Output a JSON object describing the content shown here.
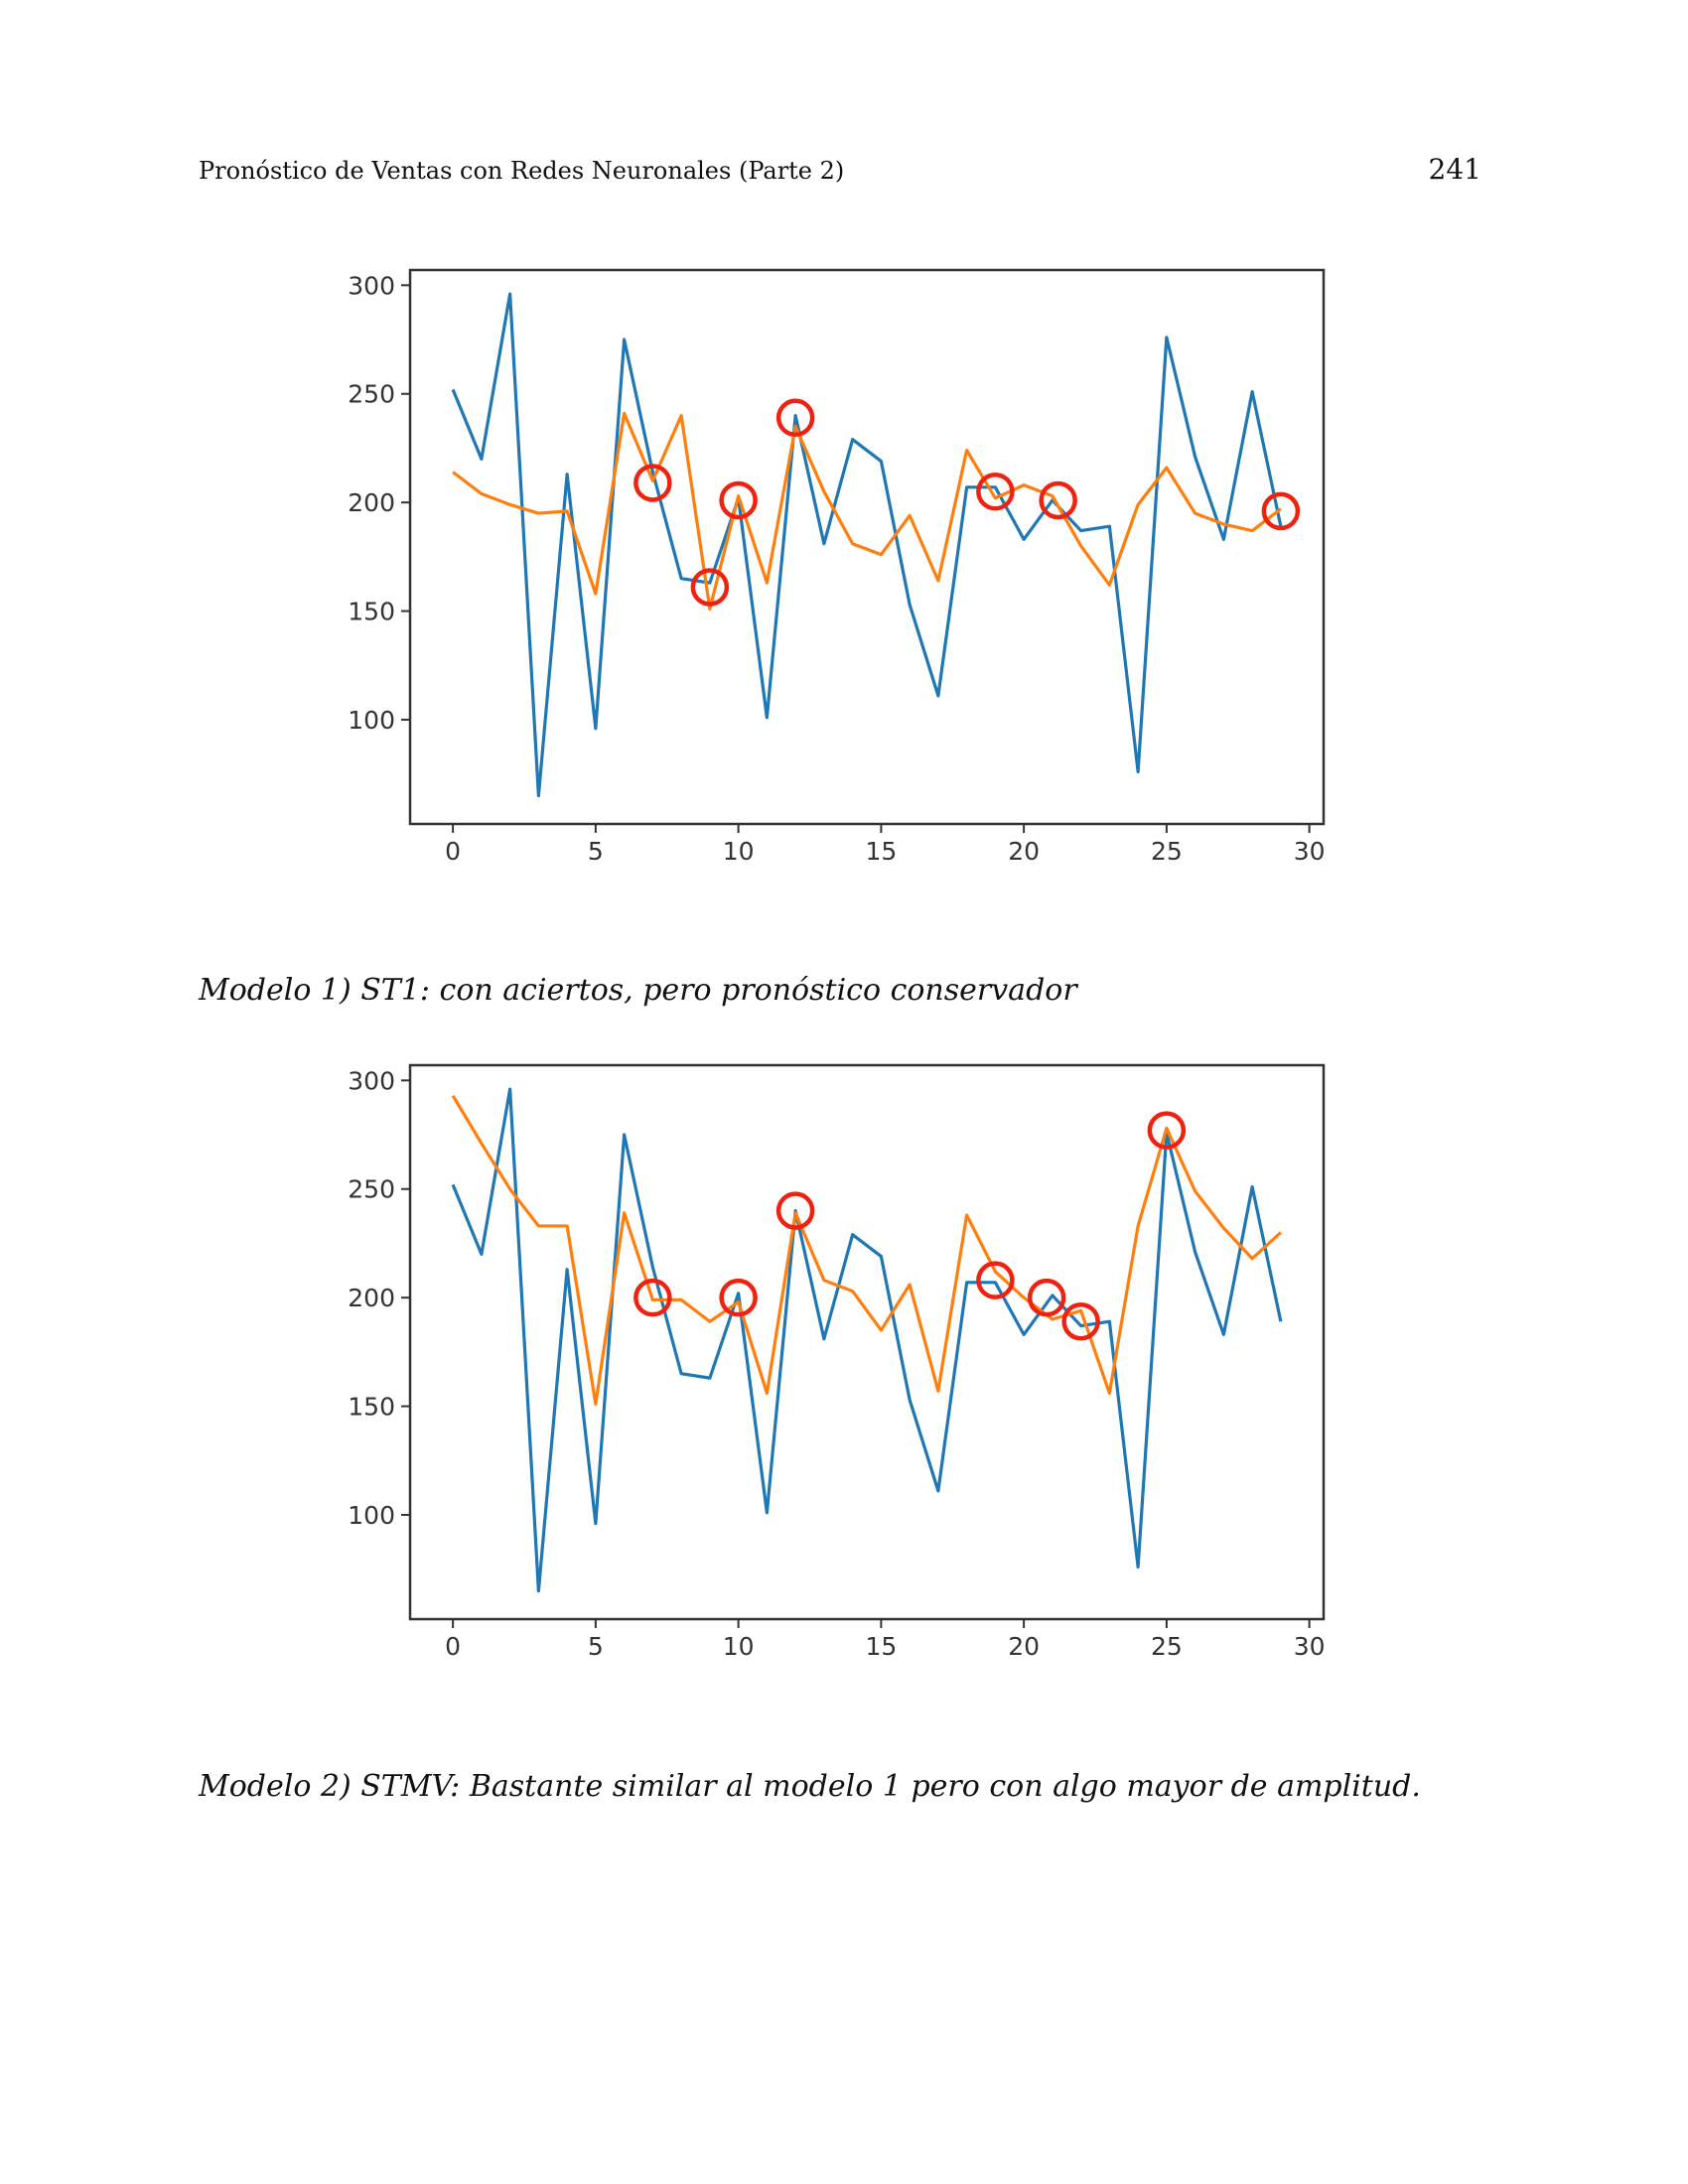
{
  "header": {
    "running_title": "Pronóstico de Ventas con Redes Neuronales (Parte 2)",
    "page_number": "241"
  },
  "colors": {
    "actual": "#1f77b4",
    "forecast": "#ff7f0e",
    "highlight": "#ee2211",
    "axis": "#333333"
  },
  "figures": [
    {
      "caption": "Modelo 1) ST1: con aciertos, pero pronóstico conservador"
    },
    {
      "caption": "Modelo 2) STMV: Bastante similar al modelo 1 pero con algo mayor de amplitud."
    }
  ],
  "chart_data": [
    {
      "type": "line",
      "title": "",
      "xlabel": "",
      "ylabel": "",
      "xlim": [
        -1.5,
        30.5
      ],
      "ylim": [
        52,
        307
      ],
      "xticks": [
        0,
        5,
        10,
        15,
        20,
        25,
        30
      ],
      "yticks": [
        100,
        150,
        200,
        250,
        300
      ],
      "series": [
        {
          "color": "#1f77b4",
          "x": [
            0,
            1,
            2,
            3,
            4,
            5,
            6,
            7,
            8,
            9,
            10,
            11,
            12,
            13,
            14,
            15,
            16,
            17,
            18,
            19,
            20,
            21,
            22,
            23,
            24,
            25,
            26,
            27,
            28,
            29
          ],
          "values": [
            252,
            220,
            296,
            65,
            213,
            96,
            275,
            214,
            165,
            163,
            202,
            101,
            240,
            181,
            229,
            219,
            153,
            111,
            207,
            207,
            183,
            201,
            187,
            189,
            76,
            276,
            221,
            183,
            251,
            189
          ]
        },
        {
          "color": "#ff7f0e",
          "x": [
            0,
            1,
            2,
            3,
            4,
            5,
            6,
            7,
            8,
            9,
            10,
            11,
            12,
            13,
            14,
            15,
            16,
            17,
            18,
            19,
            20,
            21,
            22,
            23,
            24,
            25,
            26,
            27,
            28,
            29
          ],
          "values": [
            214,
            204,
            199,
            195,
            196,
            158,
            241,
            210,
            240,
            151,
            203,
            163,
            235,
            205,
            181,
            176,
            194,
            164,
            224,
            202,
            208,
            203,
            180,
            162,
            199,
            216,
            195,
            190,
            187,
            197
          ]
        }
      ],
      "highlighted_points": [
        {
          "x": 7,
          "y": 209
        },
        {
          "x": 9,
          "y": 161
        },
        {
          "x": 10,
          "y": 201
        },
        {
          "x": 12,
          "y": 239
        },
        {
          "x": 19,
          "y": 205
        },
        {
          "x": 21.2,
          "y": 201
        },
        {
          "x": 29,
          "y": 196
        }
      ]
    },
    {
      "type": "line",
      "title": "",
      "xlabel": "",
      "ylabel": "",
      "xlim": [
        -1.5,
        30.5
      ],
      "ylim": [
        52,
        307
      ],
      "xticks": [
        0,
        5,
        10,
        15,
        20,
        25,
        30
      ],
      "yticks": [
        100,
        150,
        200,
        250,
        300
      ],
      "series": [
        {
          "color": "#1f77b4",
          "x": [
            0,
            1,
            2,
            3,
            4,
            5,
            6,
            7,
            8,
            9,
            10,
            11,
            12,
            13,
            14,
            15,
            16,
            17,
            18,
            19,
            20,
            21,
            22,
            23,
            24,
            25,
            26,
            27,
            28,
            29
          ],
          "values": [
            252,
            220,
            296,
            65,
            213,
            96,
            275,
            214,
            165,
            163,
            202,
            101,
            240,
            181,
            229,
            219,
            153,
            111,
            207,
            207,
            183,
            201,
            187,
            189,
            76,
            276,
            221,
            183,
            251,
            189
          ]
        },
        {
          "color": "#ff7f0e",
          "x": [
            0,
            1,
            2,
            3,
            4,
            5,
            6,
            7,
            8,
            9,
            10,
            11,
            12,
            13,
            14,
            15,
            16,
            17,
            18,
            19,
            20,
            21,
            22,
            23,
            24,
            25,
            26,
            27,
            28,
            29
          ],
          "values": [
            293,
            271,
            250,
            233,
            233,
            151,
            239,
            199,
            199,
            189,
            198,
            156,
            239,
            208,
            203,
            185,
            206,
            157,
            238,
            212,
            200,
            190,
            194,
            156,
            233,
            278,
            249,
            232,
            218,
            230
          ]
        }
      ],
      "highlighted_points": [
        {
          "x": 7,
          "y": 200
        },
        {
          "x": 10,
          "y": 200
        },
        {
          "x": 12,
          "y": 240
        },
        {
          "x": 19,
          "y": 208
        },
        {
          "x": 20.8,
          "y": 200
        },
        {
          "x": 22,
          "y": 189
        },
        {
          "x": 25,
          "y": 277
        }
      ]
    }
  ]
}
